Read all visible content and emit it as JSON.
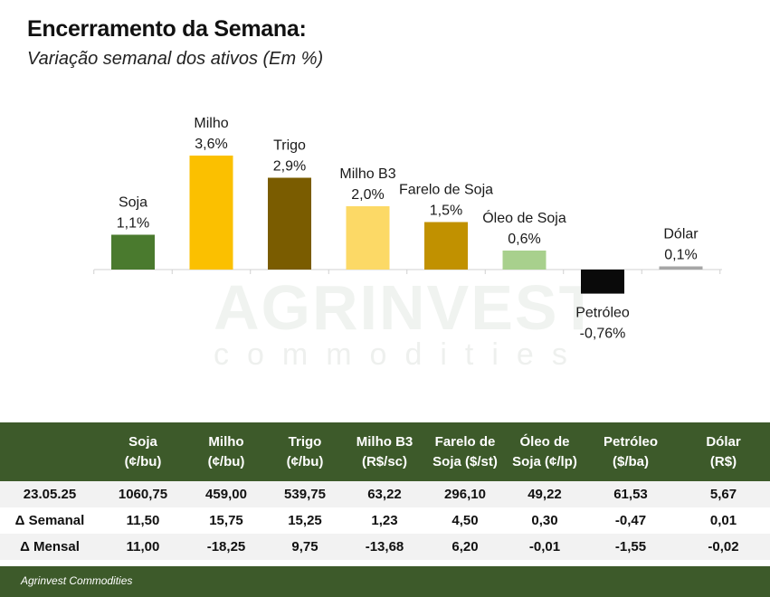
{
  "header": {
    "title": "Encerramento da Semana:",
    "subtitle": "Variação semanal dos ativos (Em %)"
  },
  "watermark": {
    "main": "AGRINVEST",
    "sub": "commodities"
  },
  "chart_data": {
    "type": "bar",
    "title": "Encerramento da Semana:",
    "subtitle": "Variação semanal dos ativos (Em %)",
    "categories": [
      "Soja",
      "Milho",
      "Trigo",
      "Milho B3",
      "Farelo de Soja",
      "Óleo de Soja",
      "Petróleo",
      "Dólar"
    ],
    "values": [
      1.1,
      3.6,
      2.9,
      2.0,
      1.5,
      0.6,
      -0.76,
      0.1
    ],
    "value_labels": [
      "1,1%",
      "3,6%",
      "2,9%",
      "2,0%",
      "1,5%",
      "0,6%",
      "-0,76%",
      "0,1%"
    ],
    "colors": [
      "#4a7a2e",
      "#fbc000",
      "#7a5c00",
      "#fcd966",
      "#c19100",
      "#a8d08d",
      "#0a0a0a",
      "#a6a6a6"
    ],
    "xlabel": "",
    "ylabel": "",
    "ylim": [
      -1,
      4
    ],
    "grid": false,
    "legend": "none"
  },
  "table": {
    "headers": [
      [
        "",
        ""
      ],
      [
        "Soja",
        "(¢/bu)"
      ],
      [
        "Milho",
        "(¢/bu)"
      ],
      [
        "Trigo",
        "(¢/bu)"
      ],
      [
        "Milho B3",
        "(R$/sc)"
      ],
      [
        "Farelo de",
        "Soja ($/st)"
      ],
      [
        "Óleo de",
        "Soja (¢/lp)"
      ],
      [
        "Petróleo",
        "($/ba)"
      ],
      [
        "Dólar",
        "(R$)"
      ]
    ],
    "rows": [
      [
        "23.05.25",
        "1060,75",
        "459,00",
        "539,75",
        "63,22",
        "296,10",
        "49,22",
        "61,53",
        "5,67"
      ],
      [
        "Δ Semanal",
        "11,50",
        "15,75",
        "15,25",
        "1,23",
        "4,50",
        "0,30",
        "-0,47",
        "0,01"
      ],
      [
        "Δ Mensal",
        "11,00",
        "-18,25",
        "9,75",
        "-13,68",
        "6,20",
        "-0,01",
        "-1,55",
        "-0,02"
      ]
    ]
  },
  "footer": {
    "text": "Agrinvest Commodities"
  }
}
